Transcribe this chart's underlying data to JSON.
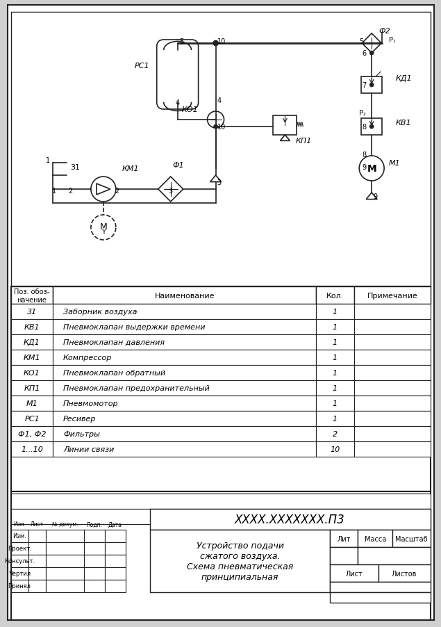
{
  "bg_color": "#e8e8e8",
  "border_color": "#222222",
  "line_color": "#222222",
  "title_document": "XXXX.XXXXXXX.П3",
  "title_name": "Устройство подачи\nсжатого воздуха.\nСхема пневматическая\nпринципиальная",
  "table_header": [
    "Поз. обоз-\nначение",
    "Наименование",
    "Кол.",
    "Примечание"
  ],
  "table_rows": [
    [
      "31",
      "Заборник воздуха",
      "1",
      ""
    ],
    [
      "КВ1",
      "Пневмоклапан выдержки времени",
      "1",
      ""
    ],
    [
      "КД1",
      "Пневмоклапан давления",
      "1",
      ""
    ],
    [
      "КМ1",
      "Компрессор",
      "1",
      ""
    ],
    [
      "КО1",
      "Пневмоклапан обратный",
      "1",
      ""
    ],
    [
      "КП1",
      "Пневмоклапан предохранительный",
      "1",
      ""
    ],
    [
      "М1",
      "Пневмомотор",
      "1",
      ""
    ],
    [
      "РС1",
      "Ресивер",
      "1",
      ""
    ],
    [
      "Ф1, Ф2",
      "Фильтры",
      "2",
      ""
    ],
    [
      "1...10",
      "Линии связи",
      "10",
      ""
    ]
  ],
  "stamp_rows": [
    "Изм.",
    "Проект.",
    "Консульт.",
    "Чертил",
    "Принял"
  ],
  "stamp_cols": [
    "Лист",
    "№ докум.",
    "Подп.",
    "Дата"
  ]
}
